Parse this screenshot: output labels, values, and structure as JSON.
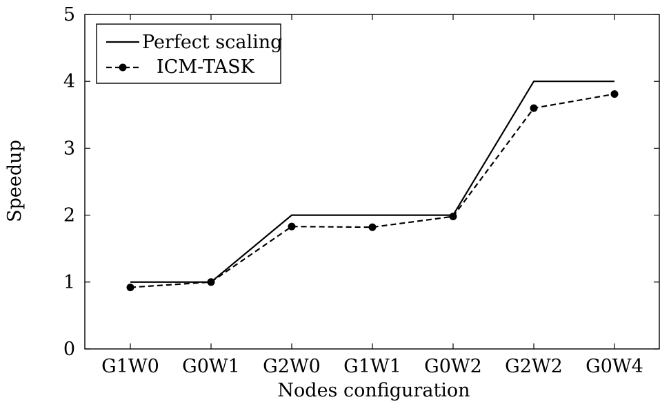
{
  "chart_data": {
    "type": "line",
    "xlabel": "Nodes configuration",
    "ylabel": "Speedup",
    "categories": [
      "G1W0",
      "G0W1",
      "G2W0",
      "G1W1",
      "G0W2",
      "G2W2",
      "G0W4"
    ],
    "ylim": [
      0,
      5
    ],
    "yticks": [
      "0",
      "1",
      "2",
      "3",
      "4",
      "5"
    ],
    "grid": false,
    "legend_position": "top-left",
    "series": [
      {
        "name": "Perfect scaling",
        "style": "solid",
        "marker": "none",
        "color": "#000000",
        "values": [
          1,
          1,
          2,
          2,
          2,
          4,
          4
        ]
      },
      {
        "name": "ICM-TASK",
        "style": "dashed",
        "marker": "circle",
        "color": "#000000",
        "values": [
          0.92,
          1.0,
          1.83,
          1.82,
          1.98,
          3.6,
          3.81
        ]
      }
    ]
  }
}
